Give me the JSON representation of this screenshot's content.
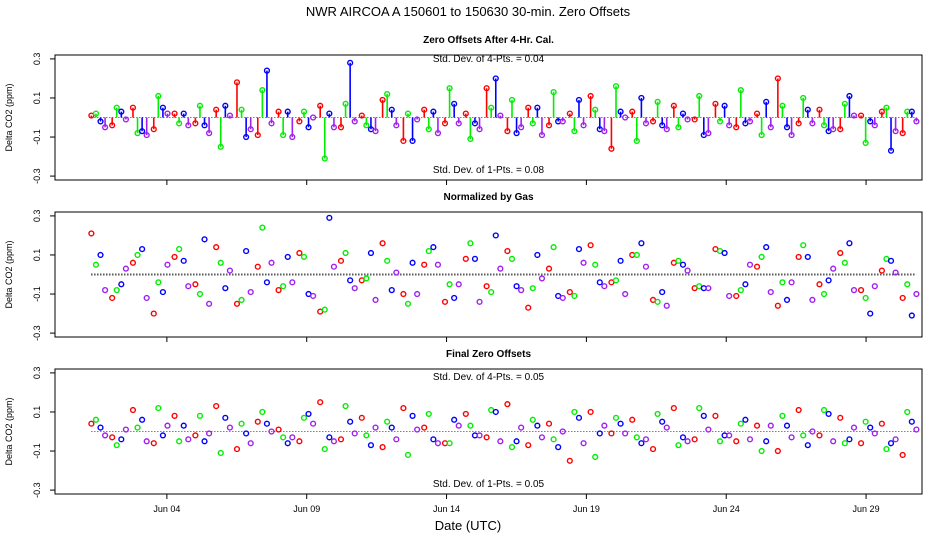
{
  "title": "NWR   AIRCOA A   150601 to 150630   30-min. Zero Offsets",
  "xlabel": "Date (UTC)",
  "ylabel": "Delta CO2 (ppm)",
  "colors": {
    "series_red": "#ff0000",
    "series_green": "#00ee00",
    "series_blue": "#0000ff",
    "series_purple": "#a020f0",
    "baseline": "#000000"
  },
  "chart_data": [
    {
      "type": "scatter",
      "title": "Zero Offsets After 4-Hr. Cal.",
      "annotations": [
        "Std. Dev. of 4-Pts. = 0.04",
        "Std. Dev. of 1-Pts. = 0.08"
      ],
      "ylabel": "Delta CO2 (ppm)",
      "ylim": [
        -0.32,
        0.32
      ],
      "yticks": [
        0.3,
        0.1,
        -0.1,
        -0.3
      ],
      "ytick_labels": [
        "0.3",
        "0.1",
        "-0.1",
        "-0.3"
      ],
      "xlim": [
        0.0,
        31.0
      ],
      "xticks": [
        4,
        9,
        14,
        19,
        24,
        29
      ],
      "xtick_labels": [
        "Jun 04",
        "Jun 09",
        "Jun 14",
        "Jun 19",
        "Jun 24",
        "Jun 29"
      ],
      "series": [
        {
          "name": "red",
          "values": [
            0.01,
            -0.04,
            0.05,
            -0.06,
            0.02,
            -0.03,
            0.04,
            0.18,
            -0.09,
            0.03,
            -0.02,
            0.06,
            -0.05,
            0.01,
            0.09,
            -0.12,
            0.04,
            -0.03,
            0.02,
            0.15,
            -0.07,
            0.05,
            -0.04,
            0.02,
            0.11,
            -0.16,
            0.03,
            -0.02,
            0.06,
            -0.01,
            0.07,
            -0.05,
            0.02,
            0.2,
            -0.03,
            0.04,
            -0.06,
            0.01,
            0.03,
            -0.08
          ]
        },
        {
          "name": "green",
          "values": [
            0.02,
            0.05,
            -0.08,
            0.11,
            -0.03,
            0.06,
            -0.15,
            0.04,
            0.14,
            -0.09,
            0.03,
            -0.21,
            0.07,
            -0.04,
            0.12,
            0.02,
            -0.06,
            0.15,
            -0.11,
            0.05,
            0.09,
            -0.03,
            0.13,
            -0.07,
            0.04,
            0.16,
            -0.12,
            0.08,
            -0.05,
            0.11,
            -0.02,
            0.14,
            -0.09,
            0.06,
            0.1,
            -0.04,
            0.07,
            -0.13,
            0.05,
            0.03
          ]
        },
        {
          "name": "blue",
          "values": [
            -0.02,
            0.03,
            -0.07,
            0.05,
            0.02,
            -0.04,
            0.06,
            -0.1,
            0.24,
            0.03,
            -0.05,
            0.02,
            0.28,
            -0.06,
            0.04,
            -0.12,
            0.03,
            0.07,
            -0.03,
            0.2,
            -0.08,
            0.05,
            -0.02,
            0.09,
            -0.06,
            0.03,
            0.1,
            -0.04,
            0.02,
            -0.09,
            0.06,
            -0.03,
            0.08,
            -0.05,
            0.04,
            -0.07,
            0.11,
            -0.02,
            -0.17,
            0.03
          ]
        },
        {
          "name": "purple",
          "values": [
            -0.05,
            -0.01,
            -0.09,
            0.02,
            -0.04,
            -0.08,
            0.01,
            -0.06,
            -0.03,
            -0.1,
            0.0,
            -0.05,
            -0.02,
            -0.07,
            -0.04,
            -0.01,
            -0.08,
            -0.03,
            -0.06,
            0.01,
            -0.05,
            -0.09,
            -0.02,
            -0.04,
            -0.07,
            0.0,
            -0.03,
            -0.06,
            -0.01,
            -0.08,
            -0.04,
            -0.02,
            -0.05,
            -0.09,
            -0.03,
            -0.06,
            0.01,
            -0.04,
            -0.07,
            -0.02
          ]
        }
      ]
    },
    {
      "type": "scatter",
      "title": "Normalized by Gas",
      "annotations": [],
      "ylabel": "Delta CO2 (ppm)",
      "ylim": [
        -0.32,
        0.32
      ],
      "yticks": [
        0.3,
        0.1,
        -0.1,
        -0.3
      ],
      "ytick_labels": [
        "0.3",
        "0.1",
        "-0.1",
        "-0.3"
      ],
      "xlim": [
        0.0,
        31.0
      ],
      "xticks": [
        4,
        9,
        14,
        19,
        24,
        29
      ],
      "xtick_labels": [
        "Jun 04",
        "Jun 09",
        "Jun 14",
        "Jun 19",
        "Jun 24",
        "Jun 29"
      ],
      "series": [
        {
          "name": "red",
          "values": [
            0.21,
            -0.12,
            0.06,
            -0.2,
            0.09,
            -0.05,
            0.14,
            -0.15,
            0.04,
            -0.08,
            0.11,
            -0.19,
            0.07,
            -0.03,
            0.16,
            -0.1,
            0.05,
            -0.14,
            0.08,
            -0.06,
            0.12,
            -0.17,
            0.03,
            -0.09,
            0.15,
            -0.04,
            0.1,
            -0.13,
            0.06,
            -0.07,
            0.13,
            -0.11,
            0.04,
            -0.16,
            0.09,
            -0.05,
            0.11,
            -0.08,
            0.02,
            -0.12
          ]
        },
        {
          "name": "green",
          "values": [
            0.05,
            -0.08,
            0.1,
            -0.04,
            0.13,
            -0.1,
            0.06,
            -0.13,
            0.24,
            -0.06,
            0.09,
            -0.18,
            0.11,
            -0.02,
            0.07,
            -0.15,
            0.12,
            -0.05,
            0.16,
            -0.09,
            0.08,
            -0.07,
            0.14,
            -0.11,
            0.05,
            -0.03,
            0.1,
            -0.14,
            0.07,
            -0.06,
            0.12,
            -0.08,
            0.09,
            -0.04,
            0.15,
            -0.1,
            0.06,
            -0.12,
            0.08,
            -0.05
          ]
        },
        {
          "name": "blue",
          "values": [
            0.1,
            -0.05,
            0.13,
            -0.09,
            0.07,
            0.18,
            -0.07,
            0.12,
            -0.04,
            0.09,
            -0.1,
            0.29,
            -0.03,
            0.11,
            -0.08,
            0.06,
            0.14,
            -0.12,
            0.08,
            0.2,
            -0.06,
            0.1,
            -0.11,
            0.13,
            -0.04,
            0.07,
            0.16,
            -0.09,
            0.05,
            -0.07,
            0.11,
            -0.05,
            0.14,
            -0.13,
            0.09,
            -0.03,
            0.16,
            -0.2,
            0.07,
            -0.21
          ]
        },
        {
          "name": "purple",
          "values": [
            -0.08,
            0.03,
            -0.12,
            0.05,
            -0.06,
            -0.15,
            0.02,
            -0.09,
            0.06,
            -0.04,
            -0.11,
            0.04,
            -0.07,
            -0.13,
            0.01,
            -0.1,
            0.05,
            -0.05,
            -0.14,
            0.03,
            -0.08,
            -0.02,
            -0.12,
            0.06,
            -0.06,
            -0.1,
            0.04,
            -0.16,
            0.02,
            -0.07,
            -0.11,
            0.05,
            -0.09,
            -0.04,
            -0.13,
            0.03,
            -0.08,
            -0.06,
            0.01,
            -0.1
          ]
        }
      ]
    },
    {
      "type": "scatter",
      "title": "Final Zero Offsets",
      "annotations": [
        "Std. Dev. of 4-Pts. = 0.05",
        "Std. Dev. of 1-Pts. = 0.05"
      ],
      "ylabel": "Delta CO2 (ppm)",
      "ylim": [
        -0.32,
        0.32
      ],
      "yticks": [
        0.3,
        0.1,
        -0.1,
        -0.3
      ],
      "ytick_labels": [
        "0.3",
        "0.1",
        "-0.1",
        "-0.3"
      ],
      "xlim": [
        0.0,
        31.0
      ],
      "xticks": [
        4,
        9,
        14,
        19,
        24,
        29
      ],
      "xtick_labels": [
        "Jun 04",
        "Jun 09",
        "Jun 14",
        "Jun 19",
        "Jun 24",
        "Jun 29"
      ],
      "series": [
        {
          "name": "red",
          "values": [
            0.04,
            -0.03,
            0.11,
            -0.06,
            0.08,
            -0.02,
            0.13,
            -0.09,
            0.05,
            0.01,
            -0.05,
            0.15,
            -0.04,
            0.07,
            -0.08,
            0.12,
            0.02,
            -0.06,
            0.09,
            -0.03,
            0.14,
            -0.07,
            0.04,
            -0.15,
            0.1,
            -0.01,
            0.06,
            -0.09,
            0.12,
            -0.04,
            0.08,
            -0.05,
            0.03,
            -0.1,
            0.11,
            -0.02,
            0.07,
            -0.06,
            0.04,
            -0.12
          ]
        },
        {
          "name": "green",
          "values": [
            0.06,
            -0.07,
            0.02,
            0.12,
            -0.05,
            0.08,
            -0.11,
            0.04,
            0.1,
            -0.03,
            0.07,
            -0.09,
            0.13,
            -0.02,
            0.05,
            -0.12,
            0.09,
            -0.06,
            0.03,
            0.11,
            -0.08,
            0.06,
            -0.04,
            0.1,
            -0.13,
            0.07,
            -0.03,
            0.09,
            -0.07,
            0.12,
            -0.05,
            0.04,
            -0.1,
            0.08,
            -0.02,
            0.11,
            -0.06,
            0.05,
            -0.09,
            0.1
          ]
        },
        {
          "name": "blue",
          "values": [
            0.02,
            -0.04,
            0.06,
            -0.02,
            0.03,
            -0.05,
            0.07,
            -0.01,
            0.04,
            -0.06,
            0.09,
            -0.03,
            0.05,
            -0.07,
            0.02,
            0.08,
            -0.04,
            0.06,
            -0.02,
            0.1,
            -0.05,
            0.03,
            -0.08,
            0.07,
            -0.01,
            0.04,
            -0.06,
            0.05,
            -0.03,
            0.08,
            -0.02,
            0.06,
            -0.05,
            0.03,
            -0.07,
            0.09,
            -0.04,
            0.02,
            -0.06,
            0.05
          ]
        },
        {
          "name": "purple",
          "values": [
            -0.02,
            0.01,
            -0.05,
            0.03,
            -0.04,
            -0.01,
            0.02,
            -0.06,
            0.0,
            -0.03,
            0.04,
            -0.05,
            -0.01,
            0.02,
            -0.04,
            0.01,
            -0.06,
            0.03,
            -0.02,
            -0.05,
            0.02,
            -0.03,
            0.0,
            -0.06,
            0.03,
            -0.01,
            -0.04,
            0.02,
            -0.05,
            0.01,
            -0.02,
            -0.04,
            0.03,
            -0.03,
            0.0,
            -0.05,
            0.02,
            -0.01,
            -0.04,
            0.01
          ]
        }
      ]
    }
  ]
}
